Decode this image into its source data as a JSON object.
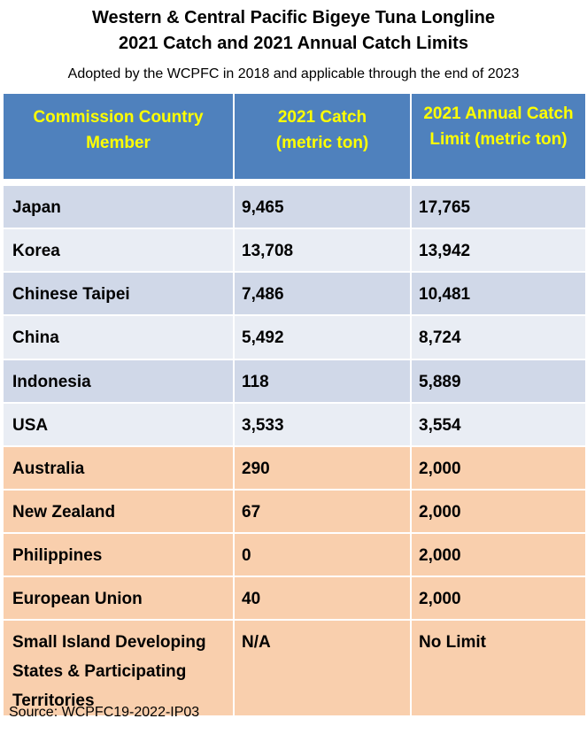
{
  "title_line1": "Western & Central Pacific Bigeye Tuna Longline",
  "title_line2": "2021 Catch and 2021 Annual Catch Limits",
  "subtitle": "Adopted by the WCPFC in 2018 and applicable through the end of 2023",
  "colors": {
    "header_bg": "#4f81bd",
    "header_text": "#ffff00",
    "row_dark": "#d0d8e8",
    "row_light": "#e9edf4",
    "row_orange": "#f9cfad"
  },
  "chart_data": {
    "type": "table",
    "columns": [
      "Commission Country Member",
      "2021 Catch (metric ton)",
      "2021 Annual Catch Limit (metric ton)"
    ],
    "header_lines": [
      [
        "Commission Country",
        "Member"
      ],
      [
        "2021 Catch",
        "(metric ton)"
      ],
      [
        "2021 Annual Catch",
        "Limit (metric ton)"
      ]
    ],
    "rows": [
      [
        "Japan",
        "9,465",
        "17,765"
      ],
      [
        "Korea",
        "13,708",
        "13,942"
      ],
      [
        "Chinese Taipei",
        "7,486",
        "10,481"
      ],
      [
        "China",
        "5,492",
        "8,724"
      ],
      [
        "Indonesia",
        "118",
        "5,889"
      ],
      [
        "USA",
        "3,533",
        "3,554"
      ],
      [
        "Australia",
        "290",
        "2,000"
      ],
      [
        "New Zealand",
        "67",
        "2,000"
      ],
      [
        "Philippines",
        "0",
        "2,000"
      ],
      [
        "European Union",
        "40",
        "2,000"
      ],
      [
        "Small Island Developing States & Participating Territories",
        "N/A",
        "No Limit"
      ]
    ],
    "last_row_lines": [
      "Small Island Developing",
      "States & Participating",
      "Territories"
    ]
  },
  "source": "Source: WCPFC19-2022-IP03"
}
